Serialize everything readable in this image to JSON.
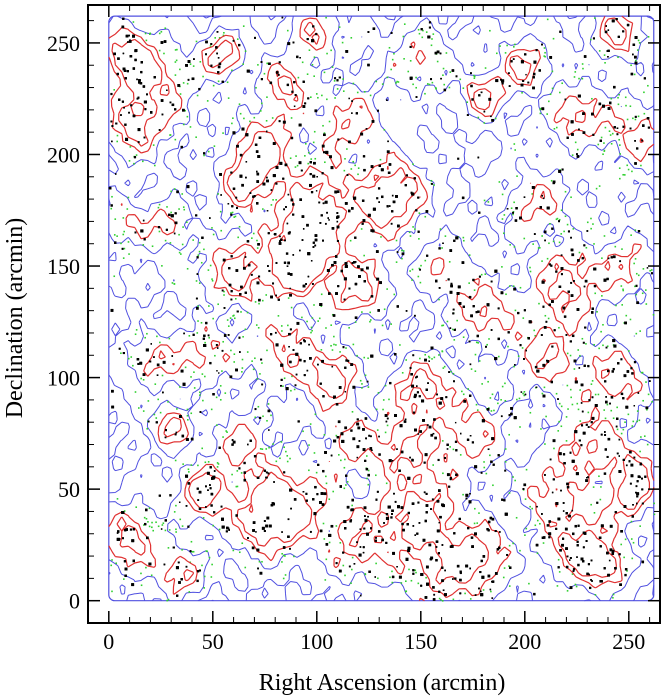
{
  "chart_data": {
    "type": "scatter",
    "title": "",
    "xlabel": "Right Ascension (arcmin)",
    "ylabel": "Declination (arcmin)",
    "xlim": [
      -10,
      265
    ],
    "ylim": [
      -10,
      267
    ],
    "xticks": [
      0,
      50,
      100,
      150,
      200,
      250
    ],
    "yticks": [
      0,
      50,
      100,
      150,
      200,
      250
    ],
    "grid": false,
    "legend": "none",
    "field_extent": [
      0,
      262
    ],
    "series": [
      {
        "kind": "points",
        "color": "#000000",
        "clusters": [
          {
            "x": 8,
            "y": 245
          },
          {
            "x": 25,
            "y": 232
          },
          {
            "x": 12,
            "y": 212
          },
          {
            "x": 55,
            "y": 245
          },
          {
            "x": 85,
            "y": 232
          },
          {
            "x": 100,
            "y": 255
          },
          {
            "x": 150,
            "y": 242
          },
          {
            "x": 180,
            "y": 226
          },
          {
            "x": 225,
            "y": 218
          },
          {
            "x": 245,
            "y": 255
          },
          {
            "x": 65,
            "y": 188
          },
          {
            "x": 28,
            "y": 168
          },
          {
            "x": 95,
            "y": 160
          },
          {
            "x": 130,
            "y": 175
          },
          {
            "x": 140,
            "y": 185
          },
          {
            "x": 205,
            "y": 178
          },
          {
            "x": 250,
            "y": 150
          },
          {
            "x": 60,
            "y": 148
          },
          {
            "x": 88,
            "y": 148
          },
          {
            "x": 120,
            "y": 140
          },
          {
            "x": 160,
            "y": 150
          },
          {
            "x": 180,
            "y": 130
          },
          {
            "x": 220,
            "y": 142
          },
          {
            "x": 20,
            "y": 108
          },
          {
            "x": 45,
            "y": 110
          },
          {
            "x": 85,
            "y": 112
          },
          {
            "x": 108,
            "y": 100
          },
          {
            "x": 150,
            "y": 95
          },
          {
            "x": 210,
            "y": 110
          },
          {
            "x": 245,
            "y": 100
          },
          {
            "x": 30,
            "y": 78
          },
          {
            "x": 65,
            "y": 70
          },
          {
            "x": 115,
            "y": 72
          },
          {
            "x": 142,
            "y": 68
          },
          {
            "x": 175,
            "y": 75
          },
          {
            "x": 230,
            "y": 70
          },
          {
            "x": 45,
            "y": 48
          },
          {
            "x": 90,
            "y": 45
          },
          {
            "x": 150,
            "y": 40
          },
          {
            "x": 210,
            "y": 50
          },
          {
            "x": 250,
            "y": 45
          },
          {
            "x": 10,
            "y": 28
          },
          {
            "x": 75,
            "y": 35
          },
          {
            "x": 120,
            "y": 25
          },
          {
            "x": 180,
            "y": 20
          },
          {
            "x": 225,
            "y": 25
          },
          {
            "x": 35,
            "y": 12
          },
          {
            "x": 160,
            "y": 10
          },
          {
            "x": 240,
            "y": 15
          },
          {
            "x": 5,
            "y": 170
          },
          {
            "x": 75,
            "y": 205
          },
          {
            "x": 115,
            "y": 215
          },
          {
            "x": 200,
            "y": 240
          },
          {
            "x": 255,
            "y": 210
          },
          {
            "x": 255,
            "y": 60
          },
          {
            "x": 100,
            "y": 180
          }
        ]
      },
      {
        "kind": "contour",
        "level": "low",
        "color": "#5050e0"
      },
      {
        "kind": "contour",
        "level": "mid",
        "color": "#30d030"
      },
      {
        "kind": "contour",
        "level": "high",
        "color": "#e03030"
      }
    ]
  }
}
